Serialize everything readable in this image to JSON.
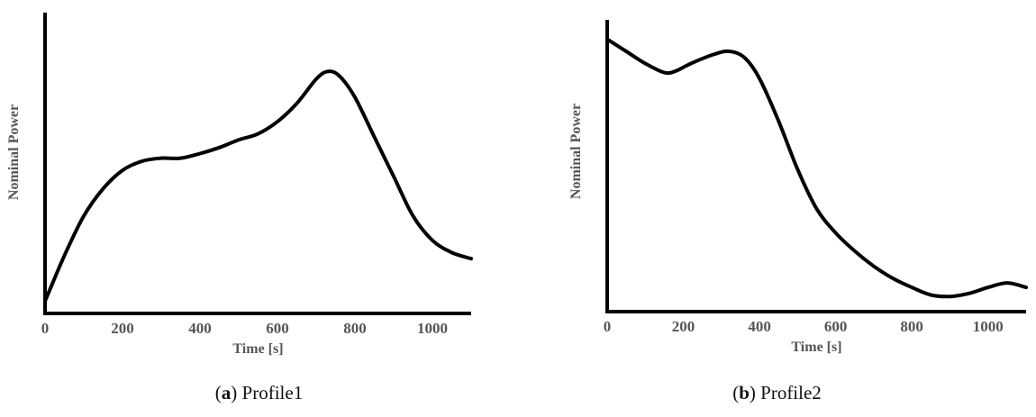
{
  "chart_data": [
    {
      "type": "line",
      "caption_letter": "a",
      "caption_text": "Profile1",
      "xlabel": "Time [s]",
      "ylabel": "Nominal Power",
      "xlim": [
        0,
        1100
      ],
      "ylim": [
        0,
        1
      ],
      "xticks": [
        "0",
        "200",
        "400",
        "600",
        "800",
        "1000"
      ],
      "line_color": "#000000",
      "series": [
        {
          "x": [
            0,
            50,
            100,
            150,
            200,
            250,
            300,
            350,
            400,
            450,
            500,
            550,
            600,
            650,
            700,
            730,
            760,
            800,
            850,
            900,
            950,
            1000,
            1050,
            1100
          ],
          "y": [
            0.04,
            0.19,
            0.32,
            0.41,
            0.47,
            0.5,
            0.51,
            0.51,
            0.525,
            0.545,
            0.57,
            0.59,
            0.63,
            0.69,
            0.77,
            0.795,
            0.78,
            0.71,
            0.58,
            0.45,
            0.32,
            0.24,
            0.2,
            0.18
          ]
        }
      ]
    },
    {
      "type": "line",
      "caption_letter": "b",
      "caption_text": "Profile2",
      "xlabel": "Time [s]",
      "ylabel": "Nominal Power",
      "xlim": [
        0,
        1100
      ],
      "ylim": [
        0,
        1
      ],
      "xticks": [
        "0",
        "200",
        "400",
        "600",
        "800",
        "1000"
      ],
      "line_color": "#000000",
      "series": [
        {
          "x": [
            0,
            50,
            100,
            150,
            180,
            220,
            280,
            320,
            360,
            400,
            450,
            500,
            550,
            600,
            650,
            700,
            750,
            800,
            850,
            900,
            950,
            1000,
            1050,
            1100
          ],
          "y": [
            0.9,
            0.86,
            0.82,
            0.79,
            0.795,
            0.82,
            0.85,
            0.86,
            0.84,
            0.77,
            0.63,
            0.47,
            0.34,
            0.26,
            0.2,
            0.15,
            0.11,
            0.08,
            0.055,
            0.05,
            0.06,
            0.08,
            0.095,
            0.08
          ]
        }
      ]
    }
  ]
}
